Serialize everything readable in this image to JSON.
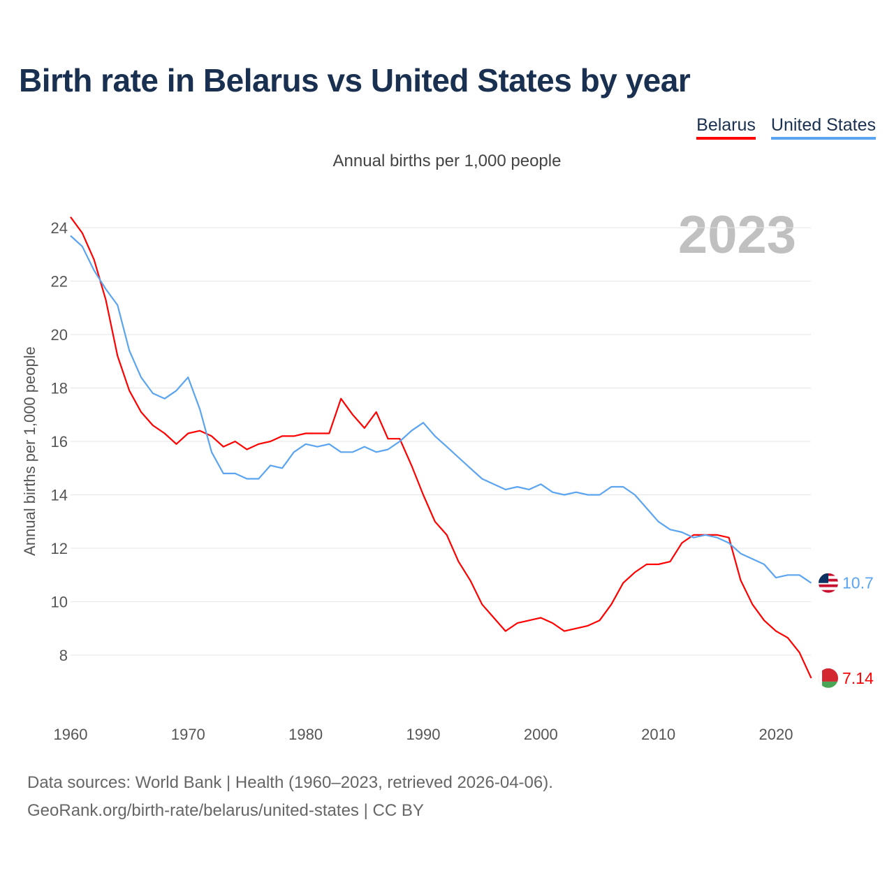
{
  "title": "Birth rate in Belarus vs United States by year",
  "subtitle": "Annual births per 1,000 people",
  "source_line1": "Data sources: World Bank | Health (1960–2023, retrieved 2026-04-06).",
  "source_line2": "GeoRank.org/birth-rate/belarus/united-states | CC BY",
  "chart_data": {
    "type": "line",
    "title": "Birth rate in Belarus vs United States by year",
    "xlabel": "",
    "ylabel": "Annual births per 1,000 people",
    "year_label": "2023",
    "x_start": 1960,
    "xlim": [
      1960,
      2023
    ],
    "ylim": [
      6.5,
      24.5
    ],
    "x_ticks": [
      1960,
      1970,
      1980,
      1990,
      2000,
      2010,
      2020
    ],
    "y_ticks": [
      8,
      10,
      12,
      14,
      16,
      18,
      20,
      22,
      24
    ],
    "grid": true,
    "legend_position": "top-right",
    "series": [
      {
        "name": "Belarus",
        "color": "#ff0000",
        "end_label": "7.14",
        "values": [
          24.4,
          23.8,
          22.8,
          21.3,
          19.2,
          17.9,
          17.1,
          16.6,
          16.3,
          15.9,
          16.3,
          16.4,
          16.2,
          15.8,
          16.0,
          15.7,
          15.9,
          16.0,
          16.2,
          16.2,
          16.3,
          16.3,
          16.3,
          17.6,
          17.0,
          16.5,
          17.1,
          16.1,
          16.1,
          15.1,
          14.0,
          13.0,
          12.5,
          11.5,
          10.8,
          9.9,
          9.4,
          8.9,
          9.2,
          9.3,
          9.4,
          9.2,
          8.9,
          9.0,
          9.1,
          9.3,
          9.9,
          10.7,
          11.1,
          11.4,
          11.4,
          11.5,
          12.2,
          12.5,
          12.5,
          12.5,
          12.4,
          10.8,
          9.9,
          9.3,
          8.9,
          8.65,
          8.1,
          7.14
        ]
      },
      {
        "name": "United States",
        "color": "#5ba4f0",
        "end_label": "10.7",
        "values": [
          23.7,
          23.3,
          22.4,
          21.7,
          21.1,
          19.4,
          18.4,
          17.8,
          17.6,
          17.9,
          18.4,
          17.2,
          15.6,
          14.8,
          14.8,
          14.6,
          14.6,
          15.1,
          15.0,
          15.6,
          15.9,
          15.8,
          15.9,
          15.6,
          15.6,
          15.8,
          15.6,
          15.7,
          16.0,
          16.4,
          16.7,
          16.2,
          15.8,
          15.4,
          15.0,
          14.6,
          14.4,
          14.2,
          14.3,
          14.2,
          14.4,
          14.1,
          14.0,
          14.1,
          14.0,
          14.0,
          14.3,
          14.3,
          14.0,
          13.5,
          13.0,
          12.7,
          12.6,
          12.4,
          12.5,
          12.4,
          12.2,
          11.8,
          11.6,
          11.4,
          10.9,
          11.0,
          11.0,
          10.7
        ]
      }
    ]
  }
}
